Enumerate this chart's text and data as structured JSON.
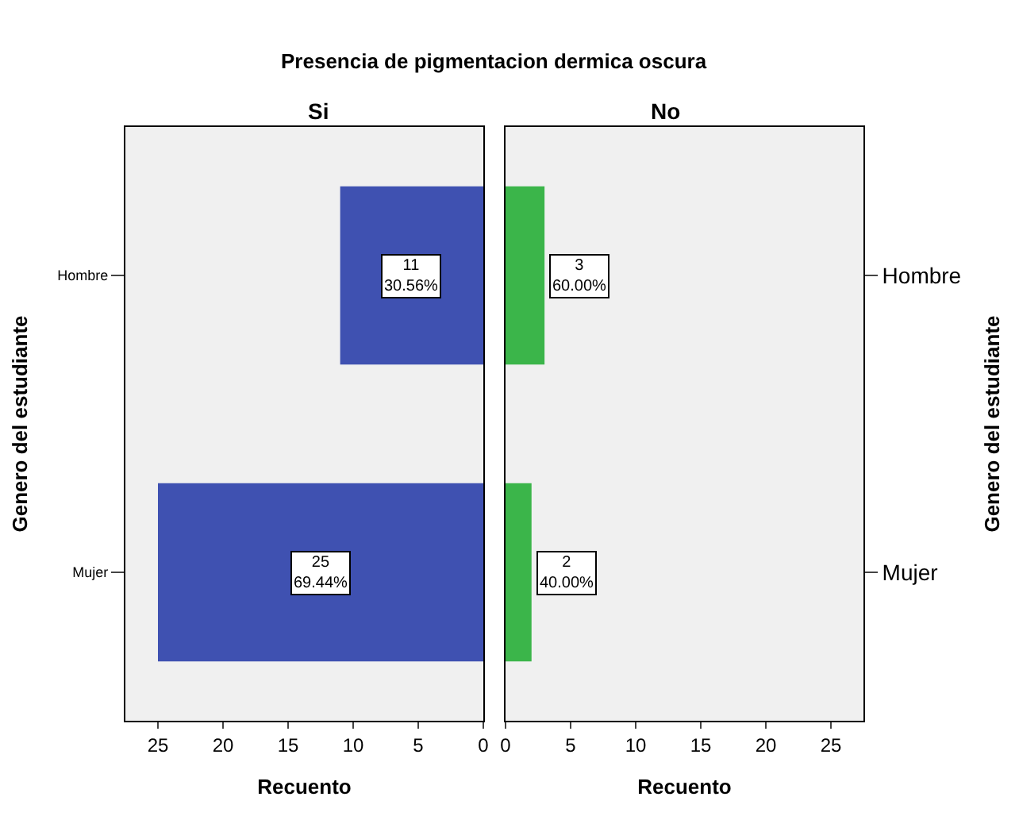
{
  "chart_data": [
    {
      "type": "bar",
      "orientation": "horizontal",
      "title": "Presencia de pigmentacion dermica oscura",
      "subtitle": "Si",
      "xlabel": "Recuento",
      "ylabel": "Genero del estudiante",
      "categories": [
        "Hombre",
        "Mujer"
      ],
      "values": [
        11,
        25
      ],
      "color": "#3f51b1",
      "value_labels": [
        "11\n30.56%",
        "25\n69.44%"
      ],
      "xlim": [
        27.5,
        0
      ],
      "xticks": [
        25,
        20,
        15,
        10,
        5,
        0
      ],
      "grid": false
    },
    {
      "type": "bar",
      "orientation": "horizontal",
      "subtitle": "No",
      "xlabel": "Recuento",
      "ylabel": "Genero del estudiante",
      "categories": [
        "Hombre",
        "Mujer"
      ],
      "values": [
        3,
        2
      ],
      "color": "#3bb54a",
      "value_labels": [
        "3\n60.00%",
        "2\n40.00%"
      ],
      "xlim": [
        0,
        27.5
      ],
      "xticks": [
        0,
        5,
        10,
        15,
        20,
        25
      ],
      "grid": false
    }
  ]
}
